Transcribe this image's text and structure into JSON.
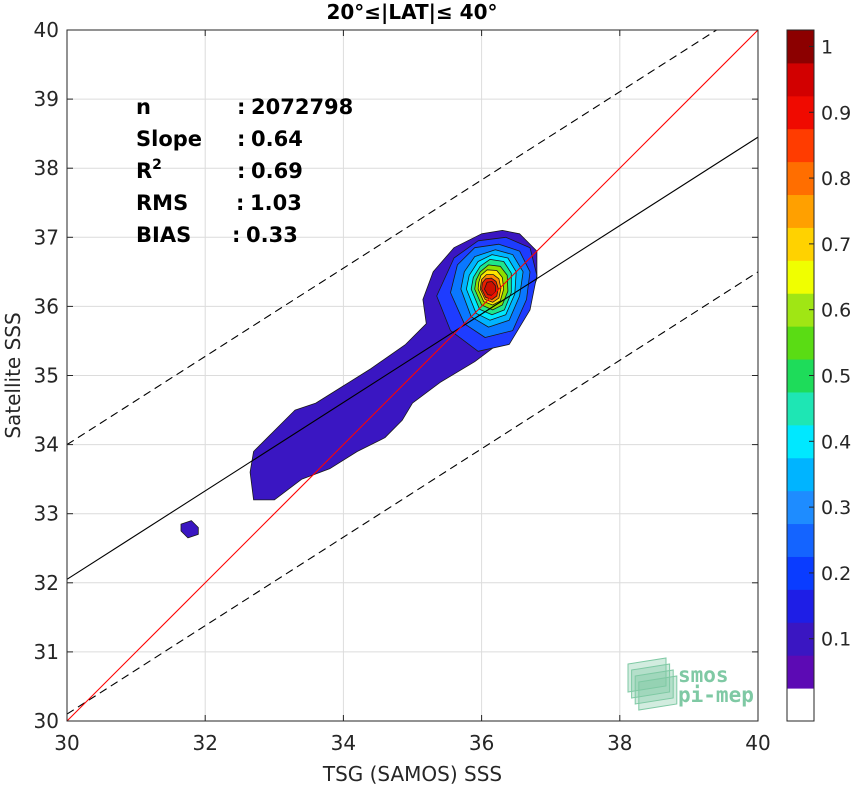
{
  "chart_data": {
    "type": "scatter",
    "title": "20°≤|LAT|≤ 40°",
    "xlabel": "TSG (SAMOS) SSS",
    "ylabel": "Satellite SSS",
    "xlim": [
      30,
      40
    ],
    "ylim": [
      30,
      40
    ],
    "xticks": [
      "30",
      "32",
      "34",
      "36",
      "38",
      "40"
    ],
    "yticks": [
      "30",
      "31",
      "32",
      "33",
      "34",
      "35",
      "36",
      "37",
      "38",
      "39",
      "40"
    ],
    "grid": true,
    "stats": [
      {
        "key": "n",
        "sep": ":",
        "value": "2072798"
      },
      {
        "key": "Slope",
        "sep": ":",
        "value": "0.64"
      },
      {
        "key": "R",
        "sup": "2",
        "sep": ":",
        "value": "0.69"
      },
      {
        "key": "RMS",
        "sep": ":",
        "value": "1.03"
      },
      {
        "key": "BIAS",
        "sep": ":",
        "value": "0.33"
      }
    ],
    "reference_lines": {
      "identity": {
        "x": [
          30,
          40
        ],
        "y": [
          30,
          40
        ],
        "color": "#ff0000"
      },
      "fit": {
        "x": [
          30,
          40
        ],
        "y": [
          32.05,
          38.45
        ],
        "color": "#000000"
      },
      "upper_bound": {
        "x": [
          30,
          39.4
        ],
        "y": [
          34.0,
          40.0
        ],
        "color": "#000000",
        "dash": true
      },
      "lower_bound": {
        "x": [
          30,
          40
        ],
        "y": [
          30.1,
          36.5
        ],
        "color": "#000000",
        "dash": true
      }
    },
    "density_contours": [
      {
        "level": 0.05,
        "color": "#3a16c2",
        "points": [
          [
            32.7,
            33.2
          ],
          [
            33.0,
            33.2
          ],
          [
            33.4,
            33.5
          ],
          [
            33.8,
            33.65
          ],
          [
            34.2,
            33.9
          ],
          [
            34.6,
            34.1
          ],
          [
            34.85,
            34.35
          ],
          [
            35.0,
            34.6
          ],
          [
            35.4,
            34.9
          ],
          [
            35.9,
            35.2
          ],
          [
            36.3,
            35.5
          ],
          [
            36.6,
            35.9
          ],
          [
            36.8,
            36.4
          ],
          [
            36.8,
            36.8
          ],
          [
            36.55,
            37.05
          ],
          [
            36.3,
            37.1
          ],
          [
            36.0,
            37.05
          ],
          [
            35.6,
            36.85
          ],
          [
            35.3,
            36.5
          ],
          [
            35.15,
            36.1
          ],
          [
            35.2,
            35.75
          ],
          [
            34.9,
            35.45
          ],
          [
            34.4,
            35.1
          ],
          [
            34.0,
            34.85
          ],
          [
            33.6,
            34.6
          ],
          [
            33.3,
            34.5
          ],
          [
            33.1,
            34.3
          ],
          [
            32.9,
            34.1
          ],
          [
            32.7,
            33.9
          ],
          [
            32.65,
            33.6
          ]
        ]
      },
      {
        "level": 0.05,
        "color": "#3a16c2",
        "points": [
          [
            31.65,
            32.75
          ],
          [
            31.75,
            32.65
          ],
          [
            31.9,
            32.7
          ],
          [
            31.9,
            32.8
          ],
          [
            31.8,
            32.9
          ],
          [
            31.65,
            32.85
          ]
        ]
      },
      {
        "level": 0.1,
        "color": "#1e3cff",
        "points": [
          [
            35.35,
            36.15
          ],
          [
            35.55,
            35.65
          ],
          [
            35.95,
            35.35
          ],
          [
            36.4,
            35.45
          ],
          [
            36.7,
            35.95
          ],
          [
            36.8,
            36.45
          ],
          [
            36.7,
            36.85
          ],
          [
            36.35,
            37.0
          ],
          [
            35.95,
            36.95
          ],
          [
            35.6,
            36.7
          ]
        ]
      },
      {
        "level": 0.2,
        "color": "#0a78ff",
        "points": [
          [
            35.55,
            36.2
          ],
          [
            35.75,
            35.75
          ],
          [
            36.05,
            35.55
          ],
          [
            36.45,
            35.65
          ],
          [
            36.65,
            36.1
          ],
          [
            36.7,
            36.5
          ],
          [
            36.55,
            36.8
          ],
          [
            36.25,
            36.9
          ],
          [
            35.9,
            36.85
          ],
          [
            35.65,
            36.6
          ]
        ]
      },
      {
        "level": 0.3,
        "color": "#00b4ff",
        "points": [
          [
            35.7,
            36.25
          ],
          [
            35.85,
            35.85
          ],
          [
            36.1,
            35.7
          ],
          [
            36.4,
            35.8
          ],
          [
            36.55,
            36.15
          ],
          [
            36.6,
            36.5
          ],
          [
            36.45,
            36.75
          ],
          [
            36.2,
            36.82
          ],
          [
            35.9,
            36.72
          ],
          [
            35.75,
            36.5
          ]
        ]
      },
      {
        "level": 0.4,
        "color": "#00e8ff",
        "points": [
          [
            35.78,
            36.25
          ],
          [
            35.92,
            35.9
          ],
          [
            36.12,
            35.8
          ],
          [
            36.35,
            35.88
          ],
          [
            36.48,
            36.18
          ],
          [
            36.5,
            36.5
          ],
          [
            36.38,
            36.7
          ],
          [
            36.15,
            36.75
          ],
          [
            35.95,
            36.65
          ],
          [
            35.82,
            36.45
          ]
        ]
      },
      {
        "level": 0.5,
        "color": "#1ee68c",
        "points": [
          [
            35.85,
            36.25
          ],
          [
            35.97,
            35.96
          ],
          [
            36.15,
            35.88
          ],
          [
            36.33,
            35.95
          ],
          [
            36.43,
            36.2
          ],
          [
            36.43,
            36.48
          ],
          [
            36.32,
            36.65
          ],
          [
            36.12,
            36.68
          ],
          [
            35.98,
            36.58
          ],
          [
            35.88,
            36.42
          ]
        ]
      },
      {
        "level": 0.6,
        "color": "#8ee000",
        "points": [
          [
            35.9,
            36.25
          ],
          [
            36.0,
            36.02
          ],
          [
            36.16,
            35.95
          ],
          [
            36.3,
            36.02
          ],
          [
            36.38,
            36.22
          ],
          [
            36.37,
            36.45
          ],
          [
            36.27,
            36.58
          ],
          [
            36.1,
            36.6
          ],
          [
            35.98,
            36.5
          ],
          [
            35.92,
            36.38
          ]
        ]
      },
      {
        "level": 0.7,
        "color": "#ffe600",
        "points": [
          [
            35.95,
            36.25
          ],
          [
            36.03,
            36.07
          ],
          [
            36.16,
            36.02
          ],
          [
            36.27,
            36.08
          ],
          [
            36.32,
            36.25
          ],
          [
            36.3,
            36.42
          ],
          [
            36.22,
            36.52
          ],
          [
            36.08,
            36.53
          ],
          [
            35.99,
            36.45
          ],
          [
            35.96,
            36.35
          ]
        ]
      },
      {
        "level": 0.8,
        "color": "#ff8800",
        "points": [
          [
            35.98,
            36.25
          ],
          [
            36.05,
            36.1
          ],
          [
            36.16,
            36.06
          ],
          [
            36.25,
            36.12
          ],
          [
            36.28,
            36.26
          ],
          [
            36.25,
            36.4
          ],
          [
            36.17,
            36.46
          ],
          [
            36.07,
            36.46
          ],
          [
            36.0,
            36.39
          ]
        ]
      },
      {
        "level": 0.9,
        "color": "#e81e00",
        "points": [
          [
            36.0,
            36.25
          ],
          [
            36.06,
            36.13
          ],
          [
            36.15,
            36.1
          ],
          [
            36.22,
            36.15
          ],
          [
            36.24,
            36.26
          ],
          [
            36.21,
            36.36
          ],
          [
            36.14,
            36.41
          ],
          [
            36.06,
            36.4
          ],
          [
            36.01,
            36.34
          ]
        ]
      },
      {
        "level": 1.0,
        "color": "#cc1000",
        "points": [
          [
            36.04,
            36.25
          ],
          [
            36.09,
            36.17
          ],
          [
            36.15,
            36.16
          ],
          [
            36.2,
            36.21
          ],
          [
            36.2,
            36.3
          ],
          [
            36.15,
            36.36
          ],
          [
            36.08,
            36.35
          ]
        ]
      }
    ],
    "colorbar": {
      "min": 0,
      "max": 1,
      "ticks": [
        "0.1",
        "0.2",
        "0.3",
        "0.4",
        "0.5",
        "0.6",
        "0.7",
        "0.8",
        "0.9",
        "1"
      ],
      "bins": [
        {
          "from": 0.0,
          "to": 0.05,
          "color": "#ffffff"
        },
        {
          "from": 0.05,
          "to": 0.1,
          "color": "#5c0ab4"
        },
        {
          "from": 0.1,
          "to": 0.15,
          "color": "#3a16c2"
        },
        {
          "from": 0.15,
          "to": 0.2,
          "color": "#1e1ee6"
        },
        {
          "from": 0.2,
          "to": 0.25,
          "color": "#0a3cff"
        },
        {
          "from": 0.25,
          "to": 0.3,
          "color": "#1464ff"
        },
        {
          "from": 0.3,
          "to": 0.35,
          "color": "#1e8cff"
        },
        {
          "from": 0.35,
          "to": 0.4,
          "color": "#00b4ff"
        },
        {
          "from": 0.4,
          "to": 0.45,
          "color": "#00e8ff"
        },
        {
          "from": 0.45,
          "to": 0.5,
          "color": "#1ee6b4"
        },
        {
          "from": 0.5,
          "to": 0.55,
          "color": "#1edc5a"
        },
        {
          "from": 0.55,
          "to": 0.6,
          "color": "#5adc14"
        },
        {
          "from": 0.6,
          "to": 0.65,
          "color": "#a0e614"
        },
        {
          "from": 0.65,
          "to": 0.7,
          "color": "#f0ff00"
        },
        {
          "from": 0.7,
          "to": 0.75,
          "color": "#ffd200"
        },
        {
          "from": 0.75,
          "to": 0.8,
          "color": "#ffa000"
        },
        {
          "from": 0.8,
          "to": 0.85,
          "color": "#ff6e00"
        },
        {
          "from": 0.85,
          "to": 0.9,
          "color": "#ff3c00"
        },
        {
          "from": 0.9,
          "to": 0.95,
          "color": "#f00a00"
        },
        {
          "from": 0.95,
          "to": 1.0,
          "color": "#d20000"
        },
        {
          "from": 1.0,
          "to": 1.05,
          "color": "#8c0000"
        }
      ]
    }
  },
  "logo": {
    "line1": "smos",
    "line2": "pi-mep",
    "color": "#7fc9a4"
  }
}
